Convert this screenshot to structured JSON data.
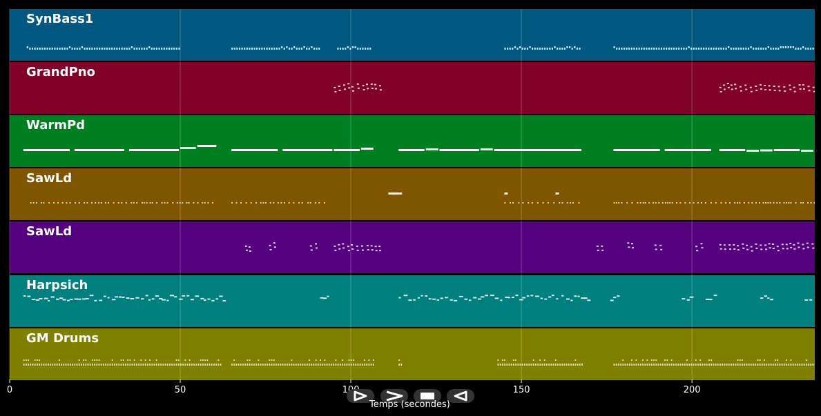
{
  "axis": {
    "label": "Temps (secondes)",
    "min": 0,
    "max": 236,
    "ticks": [
      {
        "value": 0,
        "label": "0"
      },
      {
        "value": 50,
        "label": "50"
      },
      {
        "value": 100,
        "label": "100"
      },
      {
        "value": 150,
        "label": "150"
      },
      {
        "value": 200,
        "label": "200"
      }
    ]
  },
  "tracks": [
    {
      "name": "SynBass1",
      "color": "#00577f",
      "style": "dense-ticks",
      "segments": [
        [
          5,
          50
        ],
        [
          65,
          91
        ],
        [
          96,
          106
        ],
        [
          145,
          167
        ],
        [
          177,
          236
        ]
      ]
    },
    {
      "name": "GrandPno",
      "color": "#80002a",
      "style": "chords",
      "segments": [
        [
          95,
          109
        ],
        [
          208,
          236
        ]
      ]
    },
    {
      "name": "WarmPd",
      "color": "#007f20",
      "style": "long-notes",
      "segments": [
        [
          4,
          18,
          0
        ],
        [
          19,
          34,
          0
        ],
        [
          35,
          50,
          0
        ],
        [
          50,
          55,
          6
        ],
        [
          55,
          61,
          12
        ],
        [
          65,
          79,
          0
        ],
        [
          80,
          95,
          0
        ],
        [
          95,
          103,
          0
        ],
        [
          103,
          107,
          4
        ],
        [
          114,
          122,
          0
        ],
        [
          122,
          126,
          2
        ],
        [
          126,
          138,
          0
        ],
        [
          138,
          142,
          2
        ],
        [
          142,
          168,
          0
        ],
        [
          177,
          191,
          0
        ],
        [
          192,
          206,
          0
        ],
        [
          208,
          216,
          0
        ],
        [
          216,
          220,
          -2
        ],
        [
          220,
          224,
          -1
        ],
        [
          224,
          232,
          0
        ],
        [
          232,
          236,
          -2
        ]
      ]
    },
    {
      "name": "SawLd",
      "color": "#7f5500",
      "style": "sparse-ticks",
      "segments": [
        [
          6,
          60
        ],
        [
          65,
          93
        ],
        [
          145,
          167
        ],
        [
          177,
          236
        ]
      ],
      "blocks": [
        [
          111,
          115,
          -14
        ],
        [
          145,
          146,
          -14
        ],
        [
          160,
          161,
          -14
        ]
      ]
    },
    {
      "name": "SawLd",
      "color": "#55007f",
      "style": "chords",
      "segments": [
        [
          69,
          71
        ],
        [
          76,
          78
        ],
        [
          88,
          90
        ],
        [
          95,
          99
        ],
        [
          100,
          102
        ],
        [
          103,
          106
        ],
        [
          107,
          109
        ],
        [
          172,
          174
        ],
        [
          181,
          183
        ],
        [
          189,
          191
        ],
        [
          201,
          203
        ],
        [
          208,
          236
        ]
      ]
    },
    {
      "name": "Harpsich",
      "color": "#007f7f",
      "style": "melody",
      "segments": [
        [
          4,
          63
        ],
        [
          91,
          94
        ],
        [
          114,
          170
        ],
        [
          176,
          178
        ],
        [
          197,
          200
        ],
        [
          204,
          207
        ],
        [
          220,
          223
        ],
        [
          233,
          236
        ]
      ]
    },
    {
      "name": "GM Drums",
      "color": "#7f7f00",
      "style": "drums",
      "segments": [
        [
          4,
          62
        ],
        [
          65,
          107
        ],
        [
          114,
          115
        ],
        [
          143,
          168
        ],
        [
          177,
          236
        ]
      ]
    }
  ],
  "controls": [
    {
      "name": "play-button",
      "icon": "play-icon"
    },
    {
      "name": "forward-button",
      "icon": "forward-icon"
    },
    {
      "name": "stop-button",
      "icon": "stop-icon"
    },
    {
      "name": "rewind-button",
      "icon": "rewind-icon"
    }
  ]
}
